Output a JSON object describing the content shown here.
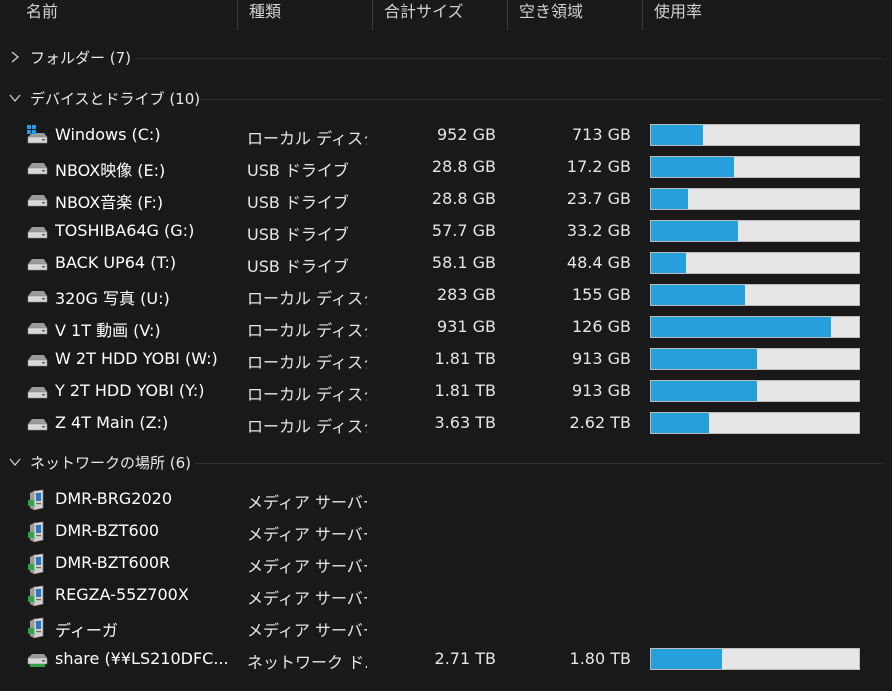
{
  "columns": [
    {
      "label": "名前"
    },
    {
      "label": "種類"
    },
    {
      "label": "合計サイズ"
    },
    {
      "label": "空き領域"
    },
    {
      "label": "使用率"
    }
  ],
  "groups": {
    "folders": {
      "title": "フォルダー (7)",
      "expanded": false
    },
    "devices": {
      "title": "デバイスとドライブ (10)",
      "expanded": true
    },
    "network": {
      "title": "ネットワークの場所 (6)",
      "expanded": true
    }
  },
  "drives": [
    {
      "name": "Windows (C:)",
      "type": "ローカル ディスク",
      "total": "952 GB",
      "free": "713 GB",
      "used": 0.25,
      "icon": "windows-drive-icon"
    },
    {
      "name": "NBOX映像 (E:)",
      "type": "USB ドライブ",
      "total": "28.8 GB",
      "free": "17.2 GB",
      "used": 0.4,
      "icon": "drive-icon"
    },
    {
      "name": "NBOX音楽 (F:)",
      "type": "USB ドライブ",
      "total": "28.8 GB",
      "free": "23.7 GB",
      "used": 0.18,
      "icon": "drive-icon"
    },
    {
      "name": "TOSHIBA64G (G:)",
      "type": "USB ドライブ",
      "total": "57.7 GB",
      "free": "33.2 GB",
      "used": 0.42,
      "icon": "drive-icon"
    },
    {
      "name": "BACK UP64 (T:)",
      "type": "USB ドライブ",
      "total": "58.1 GB",
      "free": "48.4 GB",
      "used": 0.17,
      "icon": "drive-icon"
    },
    {
      "name": "320G 写真 (U:)",
      "type": "ローカル ディスク",
      "total": "283 GB",
      "free": "155 GB",
      "used": 0.45,
      "icon": "drive-icon"
    },
    {
      "name": "V 1T  動画 (V:)",
      "type": "ローカル ディスク",
      "total": "931 GB",
      "free": "126 GB",
      "used": 0.865,
      "icon": "drive-icon"
    },
    {
      "name": "W 2T HDD YOBI (W:)",
      "type": "ローカル ディスク",
      "total": "1.81 TB",
      "free": "913 GB",
      "used": 0.51,
      "icon": "drive-icon"
    },
    {
      "name": "Y 2T HDD YOBI (Y:)",
      "type": "ローカル ディスク",
      "total": "1.81 TB",
      "free": "913 GB",
      "used": 0.51,
      "icon": "drive-icon"
    },
    {
      "name": "Z 4T Main (Z:)",
      "type": "ローカル ディスク",
      "total": "3.63 TB",
      "free": "2.62 TB",
      "used": 0.28,
      "icon": "drive-icon"
    }
  ],
  "network_items": [
    {
      "name": "DMR-BRG2020",
      "type": "メディア サーバー",
      "icon": "media-server-icon"
    },
    {
      "name": "DMR-BZT600",
      "type": "メディア サーバー",
      "icon": "media-server-icon"
    },
    {
      "name": "DMR-BZT600R",
      "type": "メディア サーバー",
      "icon": "media-server-icon"
    },
    {
      "name": "REGZA-55Z700X",
      "type": "メディア サーバー",
      "icon": "media-server-icon"
    },
    {
      "name": "ディーガ",
      "type": "メディア サーバー",
      "icon": "media-server-icon"
    },
    {
      "name": "share (¥¥LS210DFC...",
      "type": "ネットワーク ド...",
      "total": "2.71 TB",
      "free": "1.80 TB",
      "used": 0.34,
      "icon": "network-drive-icon"
    }
  ],
  "colors": {
    "background": "#191919",
    "bar_fill": "#26a0da",
    "bar_track": "#e6e6e6"
  }
}
